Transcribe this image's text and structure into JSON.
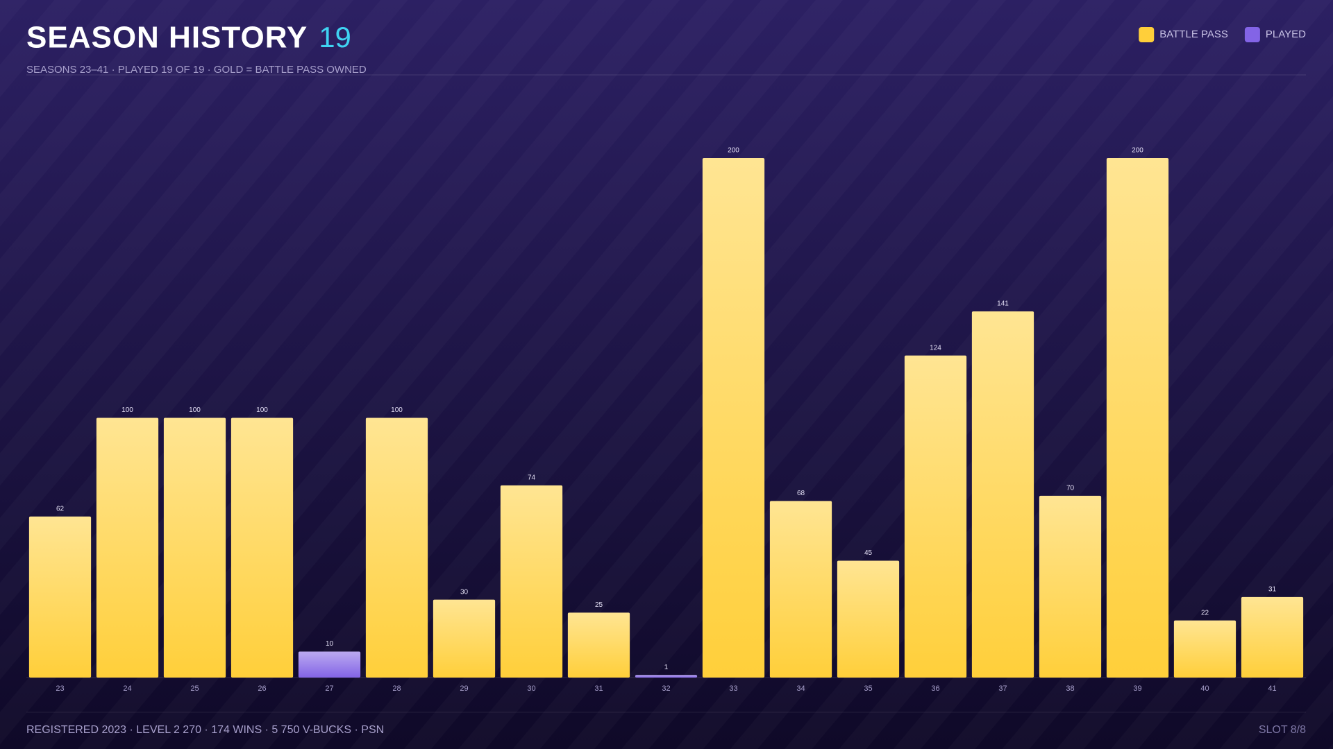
{
  "chart_data": {
    "type": "bar",
    "title": "SEASON HISTORY",
    "title_count": "19",
    "subtitle": "SEASONS 23–41 · PLAYED 19 OF 19 · GOLD = BATTLE PASS OWNED",
    "categories": [
      "23",
      "24",
      "25",
      "26",
      "27",
      "28",
      "29",
      "30",
      "31",
      "32",
      "33",
      "34",
      "35",
      "36",
      "37",
      "38",
      "39",
      "40",
      "41"
    ],
    "series": [
      {
        "name": "BATTLE PASS",
        "color": "#ffcf3a",
        "values": [
          62,
          100,
          100,
          100,
          null,
          100,
          30,
          74,
          25,
          null,
          200,
          68,
          45,
          124,
          141,
          70,
          200,
          22,
          31
        ]
      },
      {
        "name": "PLAYED",
        "color": "#8364e6",
        "values": [
          null,
          null,
          null,
          null,
          10,
          null,
          null,
          null,
          null,
          1,
          null,
          null,
          null,
          null,
          null,
          null,
          null,
          null,
          null
        ]
      }
    ],
    "ylim": [
      0,
      200
    ],
    "legend": "top-right"
  },
  "footer": {
    "stats": "REGISTERED 2023 · LEVEL 2 270 · 174 WINS · 5 750 V-BUCKS · PSN",
    "slot": "SLOT 8/8"
  }
}
